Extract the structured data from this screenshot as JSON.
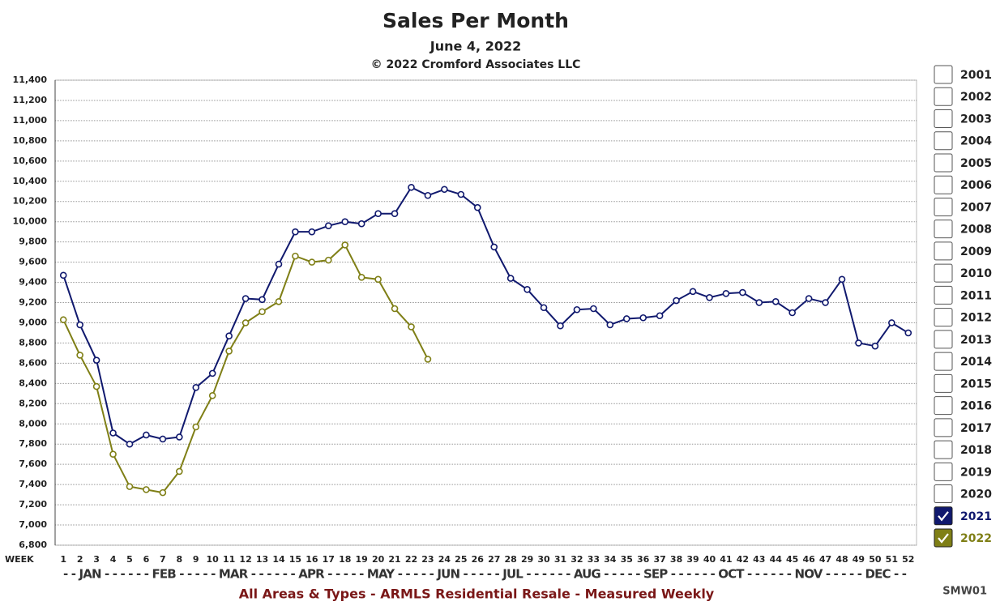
{
  "chart_data": {
    "type": "line",
    "title": "Sales Per Month",
    "subtitle": "June 4, 2022",
    "copyright": "© 2022 Cromford Associates LLC",
    "xlabel": "WEEK",
    "month_row": "- - JAN - - - - - - FEB - - - - - MAR - - - - - - APR - - - - - MAY - - - - - JUN - - - - - JUL - - - - - - AUG - - - - - SEP - - - - - - OCT - - - - - - NOV - - - - - DEC - -",
    "footer": "All Areas & Types - ARMLS Residential Resale - Measured Weekly",
    "code": "SMW01",
    "x": [
      1,
      2,
      3,
      4,
      5,
      6,
      7,
      8,
      9,
      10,
      11,
      12,
      13,
      14,
      15,
      16,
      17,
      18,
      19,
      20,
      21,
      22,
      23,
      24,
      25,
      26,
      27,
      28,
      29,
      30,
      31,
      32,
      33,
      34,
      35,
      36,
      37,
      38,
      39,
      40,
      41,
      42,
      43,
      44,
      45,
      46,
      47,
      48,
      49,
      50,
      51,
      52
    ],
    "xlim": [
      0.5,
      52.5
    ],
    "xticks": [
      1,
      2,
      3,
      4,
      5,
      6,
      7,
      8,
      9,
      10,
      11,
      12,
      13,
      14,
      15,
      16,
      17,
      18,
      19,
      20,
      21,
      22,
      23,
      24,
      25,
      26,
      27,
      28,
      29,
      30,
      31,
      32,
      33,
      34,
      35,
      36,
      37,
      38,
      39,
      40,
      41,
      42,
      43,
      44,
      45,
      46,
      47,
      48,
      49,
      50,
      51,
      52
    ],
    "ylim": [
      6800,
      11400
    ],
    "yticks": [
      {
        "value": 6800,
        "label": "6,800"
      },
      {
        "value": 7000,
        "label": "7,000"
      },
      {
        "value": 7200,
        "label": "7,200"
      },
      {
        "value": 7400,
        "label": "7,400"
      },
      {
        "value": 7600,
        "label": "7,600"
      },
      {
        "value": 7800,
        "label": "7,800"
      },
      {
        "value": 8000,
        "label": "8,000"
      },
      {
        "value": 8200,
        "label": "8,200"
      },
      {
        "value": 8400,
        "label": "8,400"
      },
      {
        "value": 8600,
        "label": "8,600"
      },
      {
        "value": 8800,
        "label": "8,800"
      },
      {
        "value": 9000,
        "label": "9,000"
      },
      {
        "value": 9200,
        "label": "9,200"
      },
      {
        "value": 9400,
        "label": "9,400"
      },
      {
        "value": 9600,
        "label": "9,600"
      },
      {
        "value": 9800,
        "label": "9,800"
      },
      {
        "value": 10000,
        "label": "10,000"
      },
      {
        "value": 10200,
        "label": "10,200"
      },
      {
        "value": 10400,
        "label": "10,400"
      },
      {
        "value": 10600,
        "label": "10,600"
      },
      {
        "value": 10800,
        "label": "10,800"
      },
      {
        "value": 11000,
        "label": "11,000"
      },
      {
        "value": 11200,
        "label": "11,200"
      },
      {
        "value": 11400,
        "label": "11,400"
      }
    ],
    "grid": true,
    "unchecked_years": [
      "2001",
      "2002",
      "2003",
      "2004",
      "2005",
      "2006",
      "2007",
      "2008",
      "2009",
      "2010",
      "2011",
      "2012",
      "2013",
      "2014",
      "2015",
      "2016",
      "2017",
      "2018",
      "2019",
      "2020"
    ],
    "series": [
      {
        "name": "2021",
        "color": "#10196e",
        "values": [
          9470,
          8980,
          8630,
          7910,
          7800,
          7890,
          7850,
          7870,
          8360,
          8500,
          8870,
          9240,
          9230,
          9580,
          9900,
          9900,
          9960,
          10000,
          9980,
          10080,
          10080,
          10340,
          10260,
          10320,
          10270,
          10140,
          9750,
          9440,
          9330,
          9150,
          8970,
          9130,
          9140,
          8980,
          9040,
          9050,
          9070,
          9220,
          9310,
          9250,
          9290,
          9300,
          9200,
          9210,
          9100,
          9240,
          9200,
          9430,
          8800,
          8770,
          9000,
          8900
        ]
      },
      {
        "name": "2022",
        "color": "#7f7f16",
        "values": [
          9030,
          8680,
          8370,
          7700,
          7380,
          7350,
          7320,
          7530,
          7970,
          8280,
          8720,
          9000,
          9110,
          9210,
          9660,
          9600,
          9620,
          9770,
          9450,
          9430,
          9140,
          8960,
          8640,
          null,
          null,
          null,
          null,
          null,
          null,
          null,
          null,
          null,
          null,
          null,
          null,
          null,
          null,
          null,
          null,
          null,
          null,
          null,
          null,
          null,
          null,
          null,
          null,
          null,
          null,
          null,
          null,
          null
        ]
      }
    ]
  }
}
